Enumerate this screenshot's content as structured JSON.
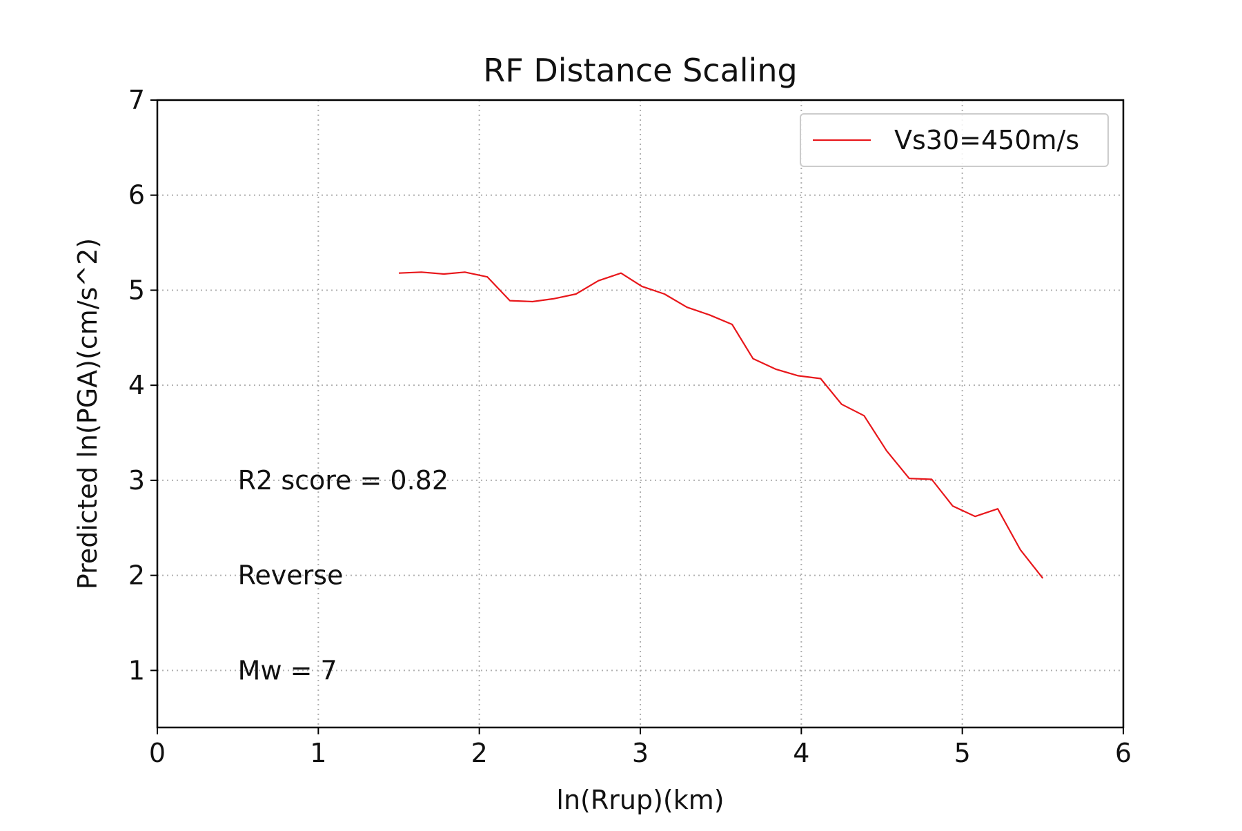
{
  "chart_data": {
    "type": "line",
    "title": "RF Distance Scaling",
    "xlabel": "ln(Rrup)(km)",
    "ylabel": "Predicted ln(PGA)(cm/s^2)",
    "xlim": [
      0,
      6
    ],
    "ylim": [
      0.4,
      7
    ],
    "xticks": [
      0,
      1,
      2,
      3,
      4,
      5,
      6
    ],
    "yticks": [
      1,
      2,
      3,
      4,
      5,
      6,
      7
    ],
    "xtick_labels": [
      "0",
      "1",
      "2",
      "3",
      "4",
      "5",
      "6"
    ],
    "ytick_labels": [
      "1",
      "2",
      "3",
      "4",
      "5",
      "6",
      "7"
    ],
    "grid": true,
    "legend_position": "top-right",
    "series": [
      {
        "name": "Vs30=450m/s",
        "color": "#e8171b",
        "x": [
          1.5,
          1.64,
          1.78,
          1.91,
          2.05,
          2.19,
          2.33,
          2.46,
          2.6,
          2.74,
          2.88,
          3.01,
          3.15,
          3.29,
          3.43,
          3.57,
          3.7,
          3.84,
          3.98,
          4.12,
          4.25,
          4.39,
          4.53,
          4.67,
          4.81,
          4.94,
          5.08,
          5.22,
          5.36,
          5.5
        ],
        "y": [
          5.18,
          5.19,
          5.17,
          5.19,
          5.14,
          4.89,
          4.88,
          4.91,
          4.96,
          5.1,
          5.18,
          5.04,
          4.96,
          4.82,
          4.74,
          4.64,
          4.28,
          4.17,
          4.1,
          4.07,
          3.8,
          3.68,
          3.31,
          3.02,
          3.01,
          2.73,
          2.62,
          2.7,
          2.27,
          1.97
        ]
      }
    ],
    "annotations": [
      {
        "text": "R2 score = 0.82",
        "x": 0.5,
        "y": 3.0
      },
      {
        "text": "Reverse",
        "x": 0.5,
        "y": 2.0
      },
      {
        "text": "Mw = 7",
        "x": 0.5,
        "y": 1.0
      }
    ]
  }
}
